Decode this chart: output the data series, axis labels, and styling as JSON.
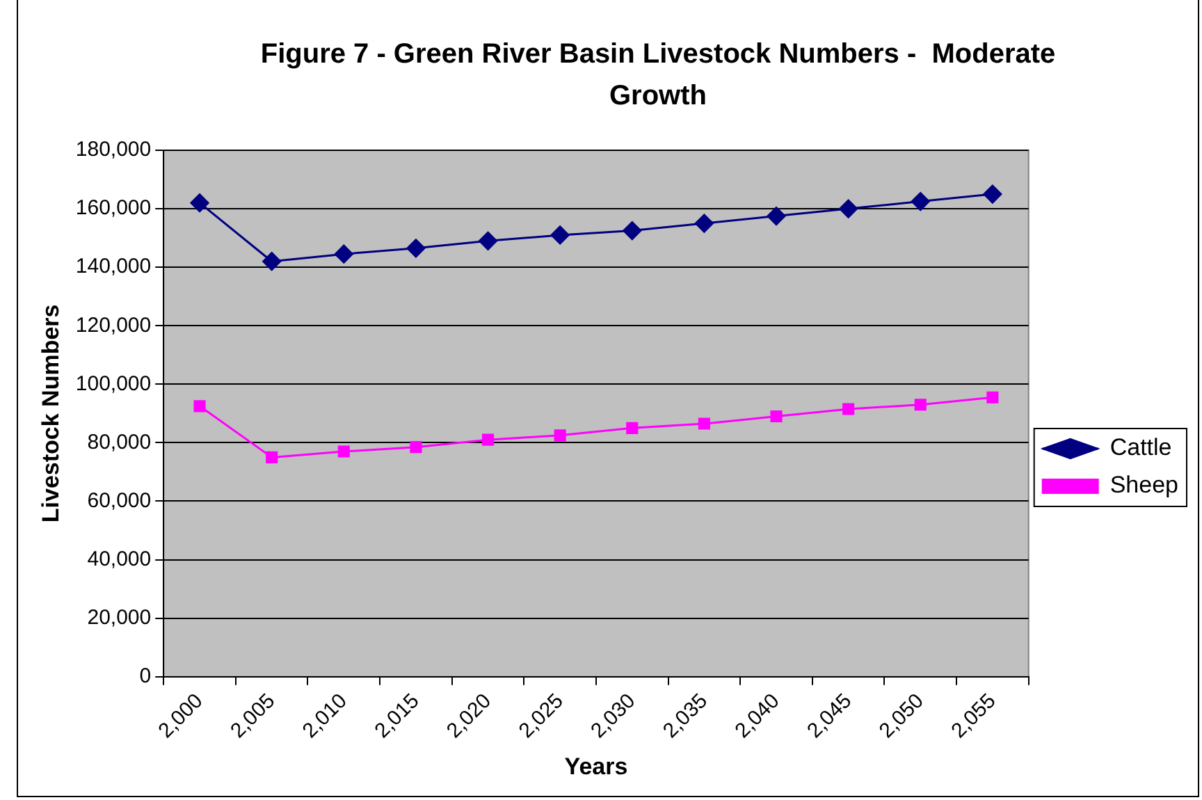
{
  "chart_data": {
    "type": "line",
    "title": "Figure 7 - Green River Basin Livestock Numbers -  Moderate Growth",
    "xlabel": "Years",
    "ylabel": "Livestock Numbers",
    "categories": [
      "2,000",
      "2,005",
      "2,010",
      "2,015",
      "2,020",
      "2,025",
      "2,030",
      "2,035",
      "2,040",
      "2,045",
      "2,050",
      "2,055"
    ],
    "series": [
      {
        "name": "Cattle",
        "color": "#000080",
        "marker": "diamond",
        "values": [
          162000,
          142000,
          144500,
          146500,
          149000,
          151000,
          152500,
          155000,
          157500,
          160000,
          162500,
          165000
        ]
      },
      {
        "name": "Sheep",
        "color": "#ff00ff",
        "marker": "square",
        "values": [
          92500,
          75000,
          77000,
          78500,
          81000,
          82500,
          85000,
          86500,
          89000,
          91500,
          93000,
          95500
        ]
      }
    ],
    "ylim": [
      0,
      180000
    ],
    "yticks": [
      {
        "value": 0,
        "label": "0"
      },
      {
        "value": 20000,
        "label": "20,000"
      },
      {
        "value": 40000,
        "label": "40,000"
      },
      {
        "value": 60000,
        "label": "60,000"
      },
      {
        "value": 80000,
        "label": "80,000"
      },
      {
        "value": 100000,
        "label": "100,000"
      },
      {
        "value": 120000,
        "label": "120,000"
      },
      {
        "value": 140000,
        "label": "140,000"
      },
      {
        "value": 160000,
        "label": "160,000"
      },
      {
        "value": 180000,
        "label": "180,000"
      }
    ],
    "grid": "y",
    "legend": "right"
  }
}
